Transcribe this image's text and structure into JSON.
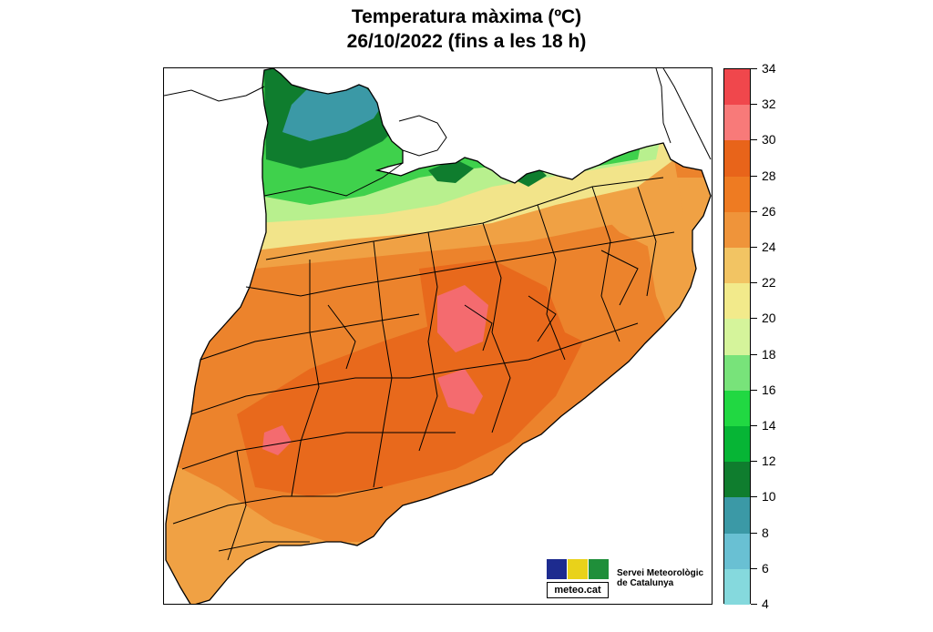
{
  "title": {
    "line1": "Temperatura màxima (ºC)",
    "line2": "26/10/2022 (fins a les 18 h)"
  },
  "legend": {
    "labels": [
      "34",
      "32",
      "30",
      "28",
      "26",
      "24",
      "22",
      "20",
      "18",
      "16",
      "14",
      "12",
      "10",
      "8",
      "6",
      "4"
    ],
    "colors": [
      "#f0474c",
      "#f87a79",
      "#e8641a",
      "#ee7b22",
      "#ef943a",
      "#f2c463",
      "#f2ea8b",
      "#d5f49b",
      "#78e37a",
      "#21d842",
      "#06b535",
      "#0f7d2e",
      "#3b99a6",
      "#69c0d3",
      "#85d9dd"
    ]
  },
  "map": {
    "colors": {
      "orange_dark": "#e8691c",
      "orange": "#ec832c",
      "orange_light": "#f0a144",
      "pink": "#f46b6f",
      "yellow": "#f2e48a",
      "lightgreen": "#b8f08e",
      "green": "#3fd14c",
      "darkgreen": "#0f7d2e",
      "teal": "#3b99a6",
      "border": "#000000"
    }
  },
  "logo": {
    "text": "meteo.cat",
    "org_line1": "Servei Meteorològic",
    "org_line2": "de Catalunya",
    "colors": [
      "#1d2b8f",
      "#e9d21a",
      "#1f8f3a"
    ]
  }
}
